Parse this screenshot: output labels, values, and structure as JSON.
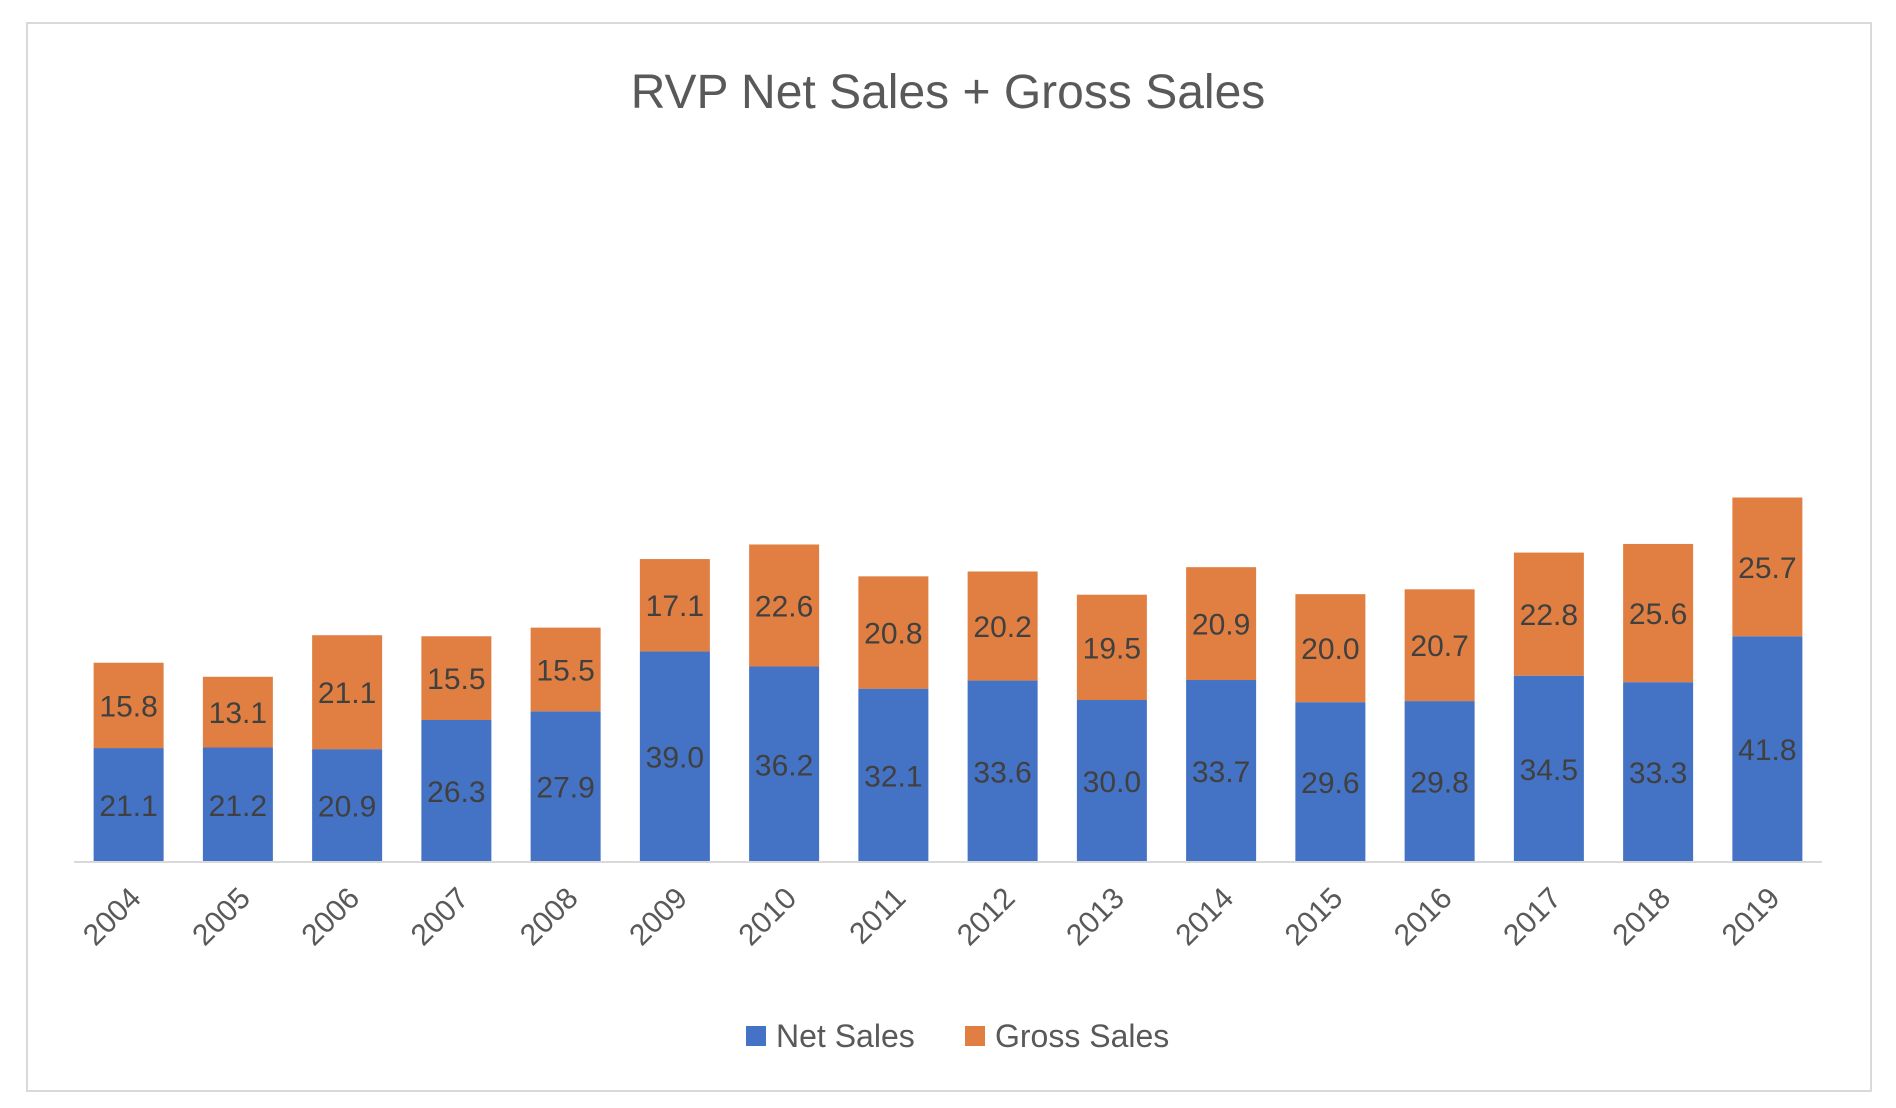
{
  "chart_data": {
    "type": "bar",
    "stacked": true,
    "title": "RVP Net Sales + Gross Sales",
    "xlabel": "",
    "ylabel": "",
    "ylim": [
      0,
      70
    ],
    "grid": false,
    "legend_position": "bottom",
    "categories": [
      "2004",
      "2005",
      "2006",
      "2007",
      "2008",
      "2009",
      "2010",
      "2011",
      "2012",
      "2013",
      "2014",
      "2015",
      "2016",
      "2017",
      "2018",
      "2019"
    ],
    "series": [
      {
        "name": "Net Sales",
        "color": "#4472C4",
        "values": [
          21.1,
          21.2,
          20.9,
          26.3,
          27.9,
          39.0,
          36.2,
          32.1,
          33.6,
          30.0,
          33.7,
          29.6,
          29.8,
          34.5,
          33.3,
          41.8
        ],
        "labels": [
          "21.1",
          "21.2",
          "20.9",
          "26.3",
          "27.9",
          "39.0",
          "36.2",
          "32.1",
          "33.6",
          "30.0",
          "33.7",
          "29.6",
          "29.8",
          "34.5",
          "33.3",
          "41.8"
        ]
      },
      {
        "name": "Gross Sales",
        "color": "#E07F41",
        "values": [
          15.8,
          13.1,
          21.1,
          15.5,
          15.5,
          17.1,
          22.6,
          20.8,
          20.2,
          19.5,
          20.9,
          20.0,
          20.7,
          22.8,
          25.6,
          25.7
        ],
        "labels": [
          "15.8",
          "13.1",
          "21.1",
          "15.5",
          "15.5",
          "17.1",
          "22.6",
          "20.8",
          "20.2",
          "19.5",
          "20.9",
          "20.0",
          "20.7",
          "22.8",
          "25.6",
          "25.7"
        ]
      }
    ]
  }
}
